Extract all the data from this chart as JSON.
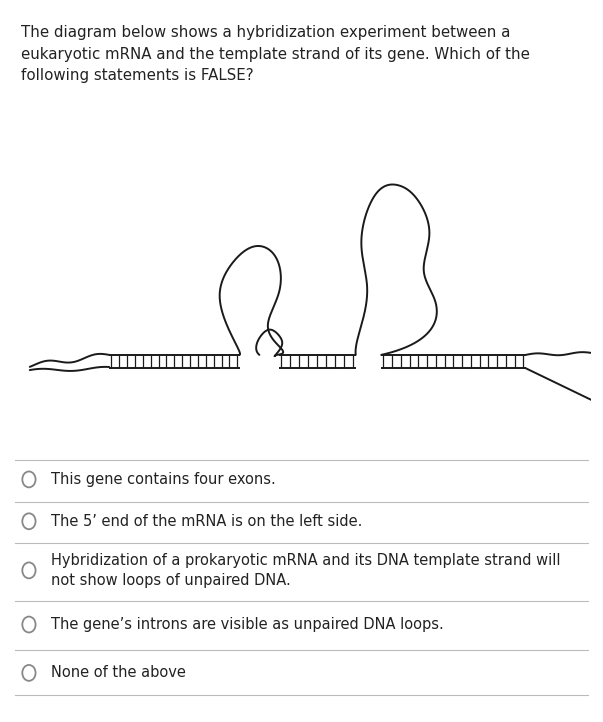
{
  "title_text": "The diagram below shows a hybridization experiment between a\neukaryotic mRNA and the template strand of its gene. Which of the\nfollowing statements is FALSE?",
  "title_fontsize": 10.8,
  "background_color": "#ffffff",
  "options": [
    "This gene contains four exons.",
    "The 5’ end of the mRNA is on the left side.",
    "Hybridization of a prokaryotic mRNA and its DNA template strand will\nnot show loops of unpaired DNA.",
    "The gene’s introns are visible as unpaired DNA loops.",
    "None of the above"
  ],
  "option_fontsize": 10.5,
  "line_color": "#1a1a1a",
  "separator_color": "#bbbbbb",
  "fig_width": 6.03,
  "fig_height": 7.22,
  "dpi": 100
}
